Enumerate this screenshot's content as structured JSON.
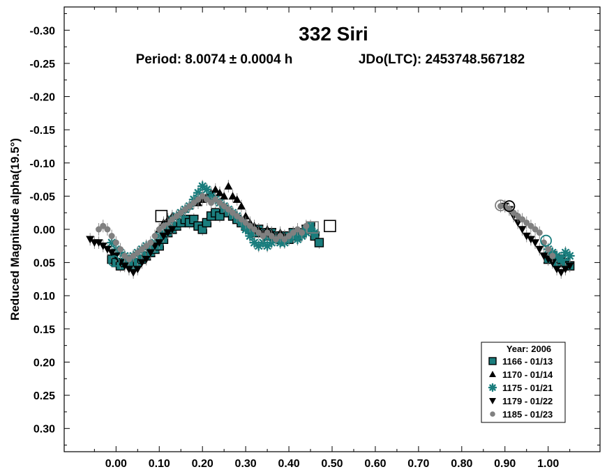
{
  "chart_data": {
    "type": "scatter",
    "title": "332 Siri",
    "subtitle_period": "Period: 8.0074 ± 0.0004 h",
    "subtitle_epoch": "JDo(LTC): 2453748.567182",
    "xlabel": "",
    "ylabel": "Reduced Magnitude alpha(19.5°)",
    "xlim": [
      -0.12,
      1.12
    ],
    "ylim": [
      -0.335,
      0.335
    ],
    "y_inverted": true,
    "grid": false,
    "x_ticks": [
      0.0,
      0.1,
      0.2,
      0.3,
      0.4,
      0.5,
      0.6,
      0.7,
      0.8,
      0.9,
      1.0
    ],
    "x_tick_labels": [
      "0.00",
      "0.10",
      "0.20",
      "0.30",
      "0.40",
      "0.50",
      "0.60",
      "0.70",
      "0.80",
      "0.90",
      "1.00"
    ],
    "y_ticks": [
      -0.3,
      -0.25,
      -0.2,
      -0.15,
      -0.1,
      -0.05,
      0.0,
      0.05,
      0.1,
      0.15,
      0.2,
      0.25,
      0.3
    ],
    "y_tick_labels": [
      "-0.30",
      "-0.25",
      "-0.20",
      "-0.15",
      "-0.10",
      "-0.05",
      "0.00",
      "0.05",
      "0.10",
      "0.15",
      "0.20",
      "0.25",
      "0.30"
    ],
    "legend": {
      "title": "Year: 2006",
      "placement": "bottom-right"
    },
    "series": [
      {
        "name": "1166 - 01/13",
        "marker": "square",
        "color": "#1a7d7d",
        "points": [
          [
            -0.01,
            0.045
          ],
          [
            0.0,
            0.05
          ],
          [
            0.01,
            0.055
          ],
          [
            0.02,
            0.05
          ],
          [
            0.03,
            0.05
          ],
          [
            0.04,
            0.055
          ],
          [
            0.05,
            0.05
          ],
          [
            0.06,
            0.045
          ],
          [
            0.07,
            0.04
          ],
          [
            0.08,
            0.035
          ],
          [
            0.09,
            0.03
          ],
          [
            0.1,
            0.025
          ],
          [
            0.11,
            0.015
          ],
          [
            0.12,
            0.005
          ],
          [
            0.13,
            0.0
          ],
          [
            0.14,
            -0.005
          ],
          [
            0.15,
            -0.01
          ],
          [
            0.16,
            -0.015
          ],
          [
            0.17,
            -0.01
          ],
          [
            0.18,
            -0.015
          ],
          [
            0.19,
            -0.005
          ],
          [
            0.2,
            0.0
          ],
          [
            0.21,
            -0.01
          ],
          [
            0.22,
            -0.02
          ],
          [
            0.23,
            -0.025
          ],
          [
            0.24,
            -0.02
          ],
          [
            0.25,
            -0.03
          ],
          [
            0.26,
            -0.025
          ],
          [
            0.27,
            -0.02
          ],
          [
            0.28,
            -0.015
          ],
          [
            0.29,
            -0.01
          ],
          [
            0.3,
            -0.005
          ],
          [
            0.31,
            0.0
          ],
          [
            0.32,
            0.005
          ],
          [
            0.33,
            0.0
          ],
          [
            0.34,
            0.005
          ],
          [
            0.35,
            0.01
          ],
          [
            0.36,
            0.005
          ],
          [
            0.37,
            0.01
          ],
          [
            0.38,
            0.015
          ],
          [
            0.39,
            0.01
          ],
          [
            0.4,
            0.015
          ],
          [
            0.41,
            0.005
          ],
          [
            0.42,
            0.01
          ],
          [
            0.43,
            0.005
          ],
          [
            0.44,
            0.0
          ],
          [
            0.45,
            -0.005
          ],
          [
            0.46,
            0.01
          ],
          [
            0.47,
            0.02
          ],
          [
            1.0,
            0.045
          ],
          [
            1.01,
            0.04
          ],
          [
            1.02,
            0.05
          ],
          [
            1.03,
            0.045
          ],
          [
            1.04,
            0.05
          ],
          [
            1.05,
            0.055
          ]
        ]
      },
      {
        "name": "1170 - 01/14",
        "marker": "triangle-up",
        "color": "#000000",
        "points": [
          [
            0.1,
            0.0
          ],
          [
            0.11,
            -0.01
          ],
          [
            0.12,
            -0.015
          ],
          [
            0.13,
            -0.02
          ],
          [
            0.14,
            -0.02
          ],
          [
            0.15,
            -0.025
          ],
          [
            0.16,
            -0.03
          ],
          [
            0.17,
            -0.035
          ],
          [
            0.18,
            -0.04
          ],
          [
            0.19,
            -0.04
          ],
          [
            0.2,
            -0.045
          ],
          [
            0.21,
            -0.05
          ],
          [
            0.22,
            -0.055
          ],
          [
            0.23,
            -0.06
          ],
          [
            0.24,
            -0.055
          ],
          [
            0.25,
            -0.05
          ],
          [
            0.26,
            -0.065
          ],
          [
            0.27,
            -0.05
          ],
          [
            0.28,
            -0.045
          ],
          [
            0.29,
            -0.035
          ],
          [
            0.3,
            -0.02
          ],
          [
            0.31,
            -0.01
          ],
          [
            0.32,
            -0.005
          ],
          [
            0.33,
            0.0
          ],
          [
            0.34,
            0.005
          ],
          [
            0.35,
            0.0
          ],
          [
            0.36,
            0.005
          ],
          [
            0.37,
            0.01
          ],
          [
            0.38,
            0.005
          ],
          [
            0.39,
            0.01
          ]
        ]
      },
      {
        "name": "1175 - 01/21",
        "marker": "asterisk",
        "color": "#1a7d7d",
        "points": [
          [
            -0.01,
            0.02
          ],
          [
            0.0,
            0.03
          ],
          [
            0.01,
            0.035
          ],
          [
            0.02,
            0.04
          ],
          [
            0.03,
            0.045
          ],
          [
            0.04,
            0.04
          ],
          [
            0.05,
            0.035
          ],
          [
            0.06,
            0.03
          ],
          [
            0.07,
            0.025
          ],
          [
            0.08,
            0.03
          ],
          [
            0.09,
            0.02
          ],
          [
            0.1,
            0.01
          ],
          [
            0.11,
            0.005
          ],
          [
            0.12,
            -0.005
          ],
          [
            0.13,
            -0.015
          ],
          [
            0.14,
            -0.02
          ],
          [
            0.15,
            -0.025
          ],
          [
            0.16,
            -0.03
          ],
          [
            0.17,
            -0.035
          ],
          [
            0.18,
            -0.045
          ],
          [
            0.19,
            -0.055
          ],
          [
            0.2,
            -0.065
          ],
          [
            0.21,
            -0.06
          ],
          [
            0.22,
            -0.05
          ],
          [
            0.23,
            -0.045
          ],
          [
            0.24,
            -0.04
          ],
          [
            0.25,
            -0.035
          ],
          [
            0.26,
            -0.03
          ],
          [
            0.27,
            -0.025
          ],
          [
            0.28,
            -0.02
          ],
          [
            0.29,
            -0.01
          ],
          [
            0.3,
            0.0
          ],
          [
            0.31,
            0.01
          ],
          [
            0.32,
            0.02
          ],
          [
            0.33,
            0.025
          ],
          [
            0.34,
            0.02
          ],
          [
            0.35,
            0.025
          ],
          [
            0.36,
            0.02
          ],
          [
            0.37,
            0.015
          ],
          [
            0.38,
            0.02
          ],
          [
            0.39,
            0.02
          ],
          [
            0.4,
            0.015
          ],
          [
            0.41,
            0.01
          ],
          [
            0.42,
            0.015
          ],
          [
            0.43,
            0.01
          ],
          [
            0.44,
            0.005
          ],
          [
            0.45,
            0.0
          ],
          [
            0.46,
            0.005
          ],
          [
            1.0,
            0.03
          ],
          [
            1.01,
            0.035
          ],
          [
            1.02,
            0.04
          ],
          [
            1.03,
            0.045
          ],
          [
            1.04,
            0.035
          ],
          [
            1.05,
            0.04
          ]
        ]
      },
      {
        "name": "1179 - 01/22",
        "marker": "triangle-down",
        "color": "#000000",
        "points": [
          [
            -0.06,
            0.015
          ],
          [
            -0.05,
            0.02
          ],
          [
            -0.04,
            0.02
          ],
          [
            -0.03,
            0.025
          ],
          [
            -0.02,
            0.03
          ],
          [
            -0.01,
            0.035
          ],
          [
            0.0,
            0.04
          ],
          [
            0.01,
            0.05
          ],
          [
            0.02,
            0.055
          ],
          [
            0.03,
            0.06
          ],
          [
            0.04,
            0.065
          ],
          [
            0.05,
            0.06
          ],
          [
            0.06,
            0.05
          ],
          [
            0.07,
            0.045
          ],
          [
            0.08,
            0.035
          ],
          [
            0.09,
            0.025
          ],
          [
            0.1,
            0.02
          ],
          [
            0.11,
            0.01
          ],
          [
            0.12,
            0.005
          ],
          [
            0.13,
            0.0
          ],
          [
            0.9,
            -0.035
          ],
          [
            0.91,
            -0.03
          ],
          [
            0.92,
            -0.02
          ],
          [
            0.93,
            -0.01
          ],
          [
            0.94,
            0.0
          ],
          [
            0.95,
            0.01
          ],
          [
            0.96,
            0.015
          ],
          [
            0.97,
            0.02
          ],
          [
            0.98,
            0.03
          ],
          [
            0.99,
            0.04
          ],
          [
            1.0,
            0.045
          ],
          [
            1.01,
            0.05
          ],
          [
            1.02,
            0.06
          ],
          [
            1.03,
            0.065
          ],
          [
            1.04,
            0.06
          ],
          [
            1.05,
            0.055
          ]
        ]
      },
      {
        "name": "1185 - 01/23",
        "marker": "circle",
        "color": "#808080",
        "points": [
          [
            -0.04,
            0.0
          ],
          [
            -0.03,
            -0.005
          ],
          [
            -0.02,
            0.0
          ],
          [
            -0.01,
            0.01
          ],
          [
            0.0,
            0.02
          ],
          [
            0.01,
            0.03
          ],
          [
            0.02,
            0.04
          ],
          [
            0.03,
            0.045
          ],
          [
            0.04,
            0.04
          ],
          [
            0.05,
            0.035
          ],
          [
            0.06,
            0.03
          ],
          [
            0.07,
            0.025
          ],
          [
            0.08,
            0.02
          ],
          [
            0.09,
            0.01
          ],
          [
            0.1,
            0.0
          ],
          [
            0.11,
            -0.005
          ],
          [
            0.12,
            -0.01
          ],
          [
            0.13,
            -0.015
          ],
          [
            0.14,
            -0.02
          ],
          [
            0.15,
            -0.025
          ],
          [
            0.16,
            -0.03
          ],
          [
            0.17,
            -0.035
          ],
          [
            0.18,
            -0.04
          ],
          [
            0.19,
            -0.045
          ],
          [
            0.2,
            -0.05
          ],
          [
            0.21,
            -0.045
          ],
          [
            0.22,
            -0.04
          ],
          [
            0.23,
            -0.045
          ],
          [
            0.24,
            -0.04
          ],
          [
            0.25,
            -0.035
          ],
          [
            0.26,
            -0.03
          ],
          [
            0.27,
            -0.025
          ],
          [
            0.28,
            -0.02
          ],
          [
            0.29,
            -0.015
          ],
          [
            0.3,
            -0.01
          ],
          [
            0.31,
            -0.005
          ],
          [
            0.32,
            0.0
          ],
          [
            0.33,
            0.005
          ],
          [
            0.34,
            0.01
          ],
          [
            0.35,
            0.005
          ],
          [
            0.36,
            0.01
          ],
          [
            0.37,
            0.015
          ],
          [
            0.38,
            0.01
          ],
          [
            0.39,
            0.015
          ],
          [
            0.4,
            0.01
          ],
          [
            0.41,
            0.005
          ],
          [
            0.42,
            0.0
          ],
          [
            0.43,
            0.005
          ],
          [
            0.44,
            -0.005
          ],
          [
            0.89,
            -0.035
          ],
          [
            0.9,
            -0.035
          ],
          [
            0.91,
            -0.03
          ],
          [
            0.92,
            -0.025
          ],
          [
            0.93,
            -0.02
          ],
          [
            0.94,
            -0.015
          ],
          [
            0.95,
            -0.01
          ],
          [
            0.96,
            -0.005
          ],
          [
            0.97,
            0.0
          ],
          [
            0.98,
            0.005
          ],
          [
            0.99,
            0.02
          ],
          [
            1.0,
            0.03
          ],
          [
            1.01,
            0.04
          ]
        ]
      }
    ],
    "annotations": [
      {
        "marker": "open-square",
        "color": "#000000",
        "x": 0.105,
        "y": -0.02
      },
      {
        "marker": "open-square",
        "color": "#000000",
        "x": 0.495,
        "y": -0.005
      },
      {
        "marker": "open-square",
        "color": "#808080",
        "x": 0.455,
        "y": -0.003
      },
      {
        "marker": "open-circle",
        "color": "#1a7d7d",
        "x": -0.005,
        "y": 0.048
      },
      {
        "marker": "open-circle",
        "color": "#808080",
        "x": 0.89,
        "y": -0.036
      },
      {
        "marker": "open-circle",
        "color": "#000000",
        "x": 0.91,
        "y": -0.035
      },
      {
        "marker": "open-circle",
        "color": "#1a7d7d",
        "x": 0.995,
        "y": 0.017
      }
    ]
  }
}
